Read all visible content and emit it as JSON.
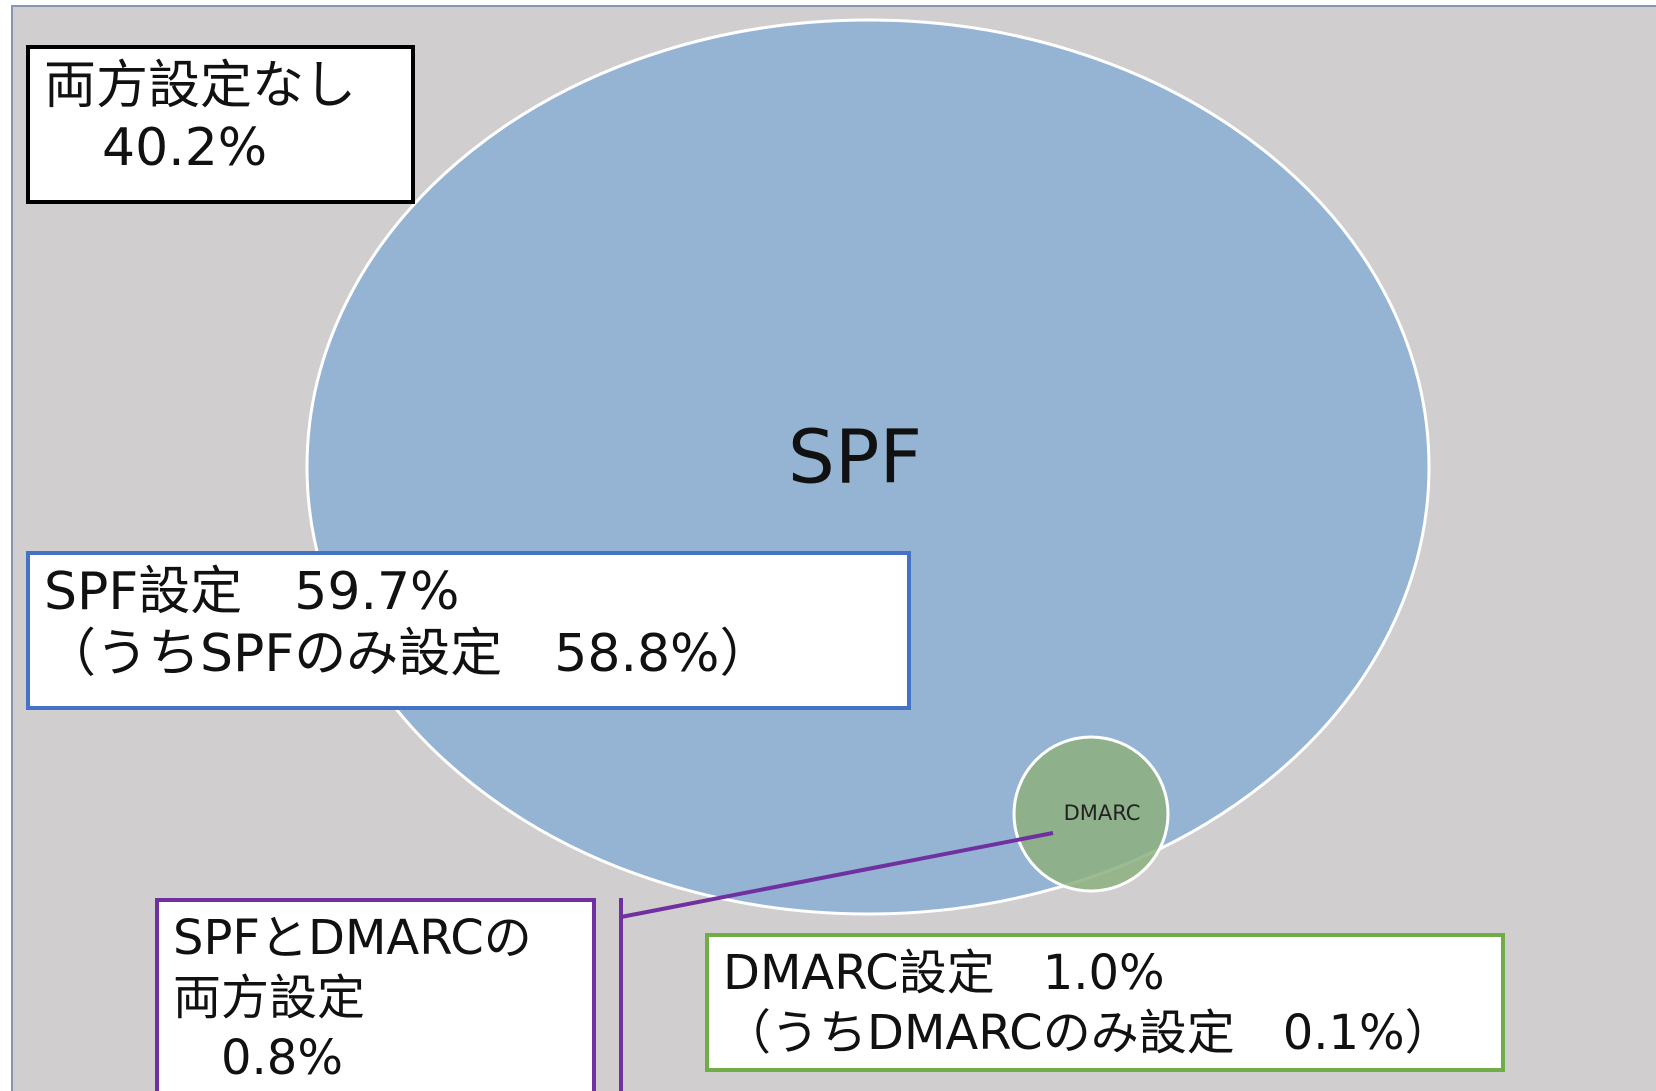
{
  "no_setting": {
    "label": "両方設定なし",
    "value": "40.2%"
  },
  "spf_circle": {
    "label": "SPF"
  },
  "dmarc_circle": {
    "label": "DMARC"
  },
  "spf_box": {
    "line1": "SPF設定　59.7%",
    "line2": "（うちSPFのみ設定　58.8%）"
  },
  "both_box": {
    "line1": "SPFとDMARCの",
    "line2": "両方設定",
    "line3": "0.8%"
  },
  "dmarc_box": {
    "line1": "DMARC設定　1.0%",
    "line2": "（うちDMARCのみ設定　0.1%）"
  }
}
